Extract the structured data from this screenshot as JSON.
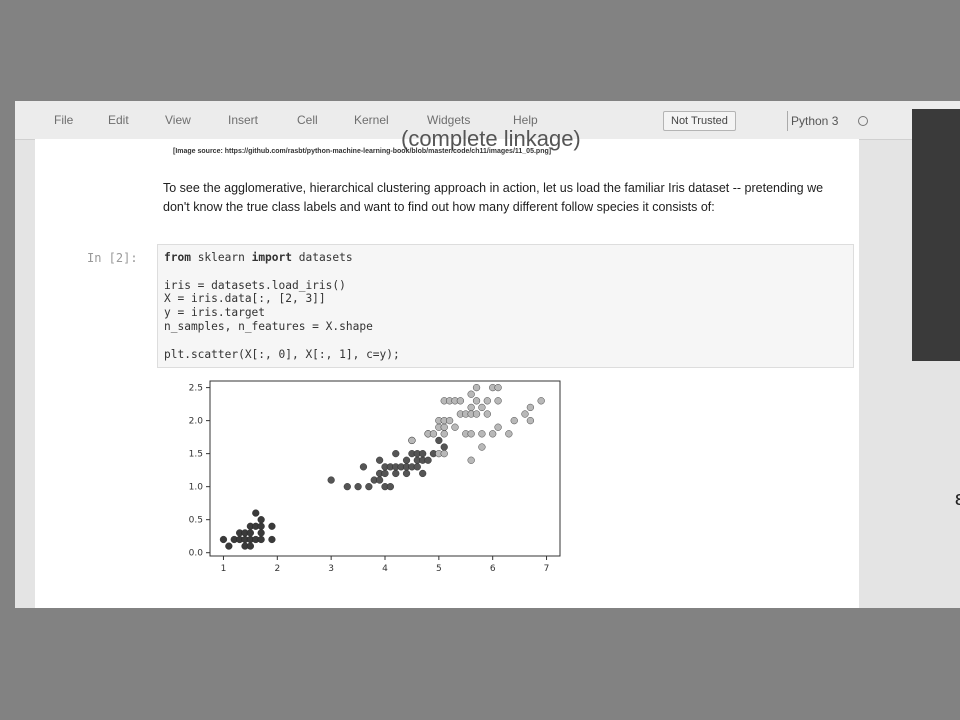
{
  "menu": {
    "items": [
      "File",
      "Edit",
      "View",
      "Insert",
      "Cell",
      "Kernel",
      "Widgets",
      "Help"
    ],
    "trust_label": "Not Trusted",
    "kernel_name": "Python 3"
  },
  "notebook": {
    "heading_partial": "(complete linkage)",
    "image_source": "[Image source: https://github.com/rasbt/python-machine-learning-book/blob/master/code/ch11/images/11_05.png]",
    "paragraph": "To see the agglomerative, hierarchical clustering approach in action, let us load the familiar Iris dataset -- pretending we don't know the true class labels and want to find out how many different follow species it consists of:",
    "cell_prompt": "In [2]:",
    "code_lines": [
      "from sklearn import datasets",
      "",
      "iris = datasets.load_iris()",
      "X = iris.data[:, [2, 3]]",
      "y = iris.target",
      "n_samples, n_features = X.shape",
      "",
      "plt.scatter(X[:, 0], X[:, 1], c=y);"
    ]
  },
  "chart_data": {
    "type": "scatter",
    "title": "",
    "xlabel": "",
    "ylabel": "",
    "xlim": [
      0.75,
      7.25
    ],
    "ylim": [
      -0.05,
      2.6
    ],
    "x_ticks": [
      1,
      2,
      3,
      4,
      5,
      6,
      7
    ],
    "y_ticks": [
      0.0,
      0.5,
      1.0,
      1.5,
      2.0,
      2.5
    ],
    "y_tick_labels": [
      "0.0",
      "0.5",
      "1.0",
      "1.5",
      "2.0",
      "2.5"
    ],
    "grid": false,
    "series": [
      {
        "color": "#3a3a3a",
        "points": [
          [
            1.0,
            0.2
          ],
          [
            1.1,
            0.1
          ],
          [
            1.2,
            0.2
          ],
          [
            1.3,
            0.2
          ],
          [
            1.3,
            0.3
          ],
          [
            1.4,
            0.1
          ],
          [
            1.4,
            0.2
          ],
          [
            1.4,
            0.3
          ],
          [
            1.5,
            0.1
          ],
          [
            1.5,
            0.2
          ],
          [
            1.5,
            0.3
          ],
          [
            1.5,
            0.4
          ],
          [
            1.6,
            0.2
          ],
          [
            1.6,
            0.4
          ],
          [
            1.6,
            0.6
          ],
          [
            1.7,
            0.2
          ],
          [
            1.7,
            0.3
          ],
          [
            1.7,
            0.4
          ],
          [
            1.7,
            0.5
          ],
          [
            1.9,
            0.2
          ],
          [
            1.9,
            0.4
          ]
        ]
      },
      {
        "color": "#555555",
        "points": [
          [
            3.0,
            1.1
          ],
          [
            3.3,
            1.0
          ],
          [
            3.5,
            1.0
          ],
          [
            3.6,
            1.3
          ],
          [
            3.7,
            1.0
          ],
          [
            3.8,
            1.1
          ],
          [
            3.9,
            1.1
          ],
          [
            3.9,
            1.2
          ],
          [
            3.9,
            1.4
          ],
          [
            4.0,
            1.0
          ],
          [
            4.0,
            1.2
          ],
          [
            4.0,
            1.3
          ],
          [
            4.1,
            1.0
          ],
          [
            4.1,
            1.3
          ],
          [
            4.2,
            1.2
          ],
          [
            4.2,
            1.3
          ],
          [
            4.2,
            1.5
          ],
          [
            4.3,
            1.3
          ],
          [
            4.4,
            1.2
          ],
          [
            4.4,
            1.3
          ],
          [
            4.4,
            1.4
          ],
          [
            4.5,
            1.3
          ],
          [
            4.5,
            1.5
          ],
          [
            4.5,
            1.7
          ],
          [
            4.6,
            1.3
          ],
          [
            4.6,
            1.4
          ],
          [
            4.6,
            1.5
          ],
          [
            4.7,
            1.2
          ],
          [
            4.7,
            1.4
          ],
          [
            4.7,
            1.5
          ],
          [
            4.8,
            1.4
          ],
          [
            4.8,
            1.8
          ],
          [
            4.9,
            1.5
          ],
          [
            5.0,
            1.7
          ],
          [
            5.1,
            1.6
          ]
        ]
      },
      {
        "color": "#b8b8b8",
        "points": [
          [
            4.5,
            1.7
          ],
          [
            4.8,
            1.8
          ],
          [
            4.9,
            1.8
          ],
          [
            5.0,
            1.5
          ],
          [
            5.0,
            1.9
          ],
          [
            5.0,
            2.0
          ],
          [
            5.1,
            1.5
          ],
          [
            5.1,
            1.8
          ],
          [
            5.1,
            1.9
          ],
          [
            5.1,
            2.0
          ],
          [
            5.1,
            2.3
          ],
          [
            5.2,
            2.0
          ],
          [
            5.2,
            2.3
          ],
          [
            5.3,
            1.9
          ],
          [
            5.3,
            2.3
          ],
          [
            5.4,
            2.1
          ],
          [
            5.4,
            2.3
          ],
          [
            5.5,
            1.8
          ],
          [
            5.5,
            2.1
          ],
          [
            5.6,
            1.4
          ],
          [
            5.6,
            1.8
          ],
          [
            5.6,
            2.1
          ],
          [
            5.6,
            2.2
          ],
          [
            5.6,
            2.4
          ],
          [
            5.7,
            2.1
          ],
          [
            5.7,
            2.3
          ],
          [
            5.7,
            2.5
          ],
          [
            5.8,
            1.6
          ],
          [
            5.8,
            1.8
          ],
          [
            5.8,
            2.2
          ],
          [
            5.9,
            2.1
          ],
          [
            5.9,
            2.3
          ],
          [
            6.0,
            1.8
          ],
          [
            6.0,
            2.5
          ],
          [
            6.1,
            1.9
          ],
          [
            6.1,
            2.3
          ],
          [
            6.1,
            2.5
          ],
          [
            6.3,
            1.8
          ],
          [
            6.4,
            2.0
          ],
          [
            6.6,
            2.1
          ],
          [
            6.7,
            2.0
          ],
          [
            6.7,
            2.2
          ],
          [
            6.9,
            2.3
          ]
        ]
      }
    ]
  }
}
